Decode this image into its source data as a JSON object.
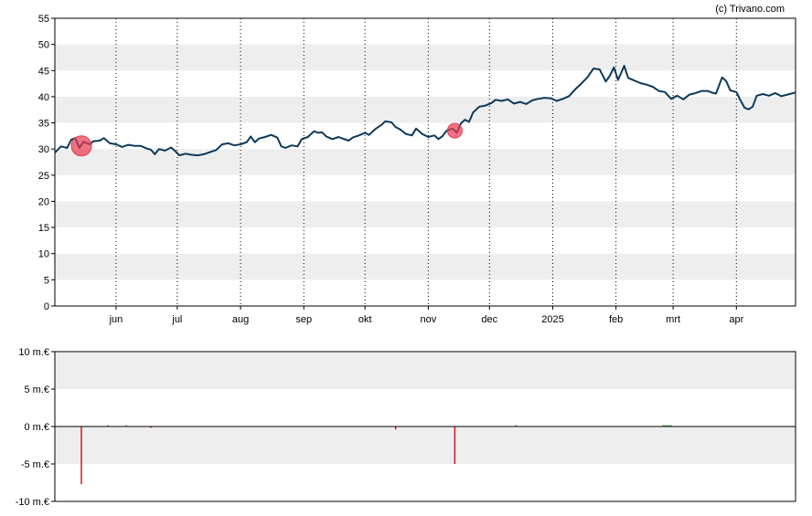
{
  "credit": "(c) Trivano.com",
  "colors": {
    "band": "#eeeeee",
    "line": "#0d3a5a",
    "marker": "#e8384f",
    "negative_bar": "#d11a1a",
    "positive_bar": "#1f9e3a",
    "axis": "#000000",
    "vgrid": "#000000"
  },
  "chart_data": [
    {
      "type": "line",
      "ylim": [
        0,
        55
      ],
      "y_ticks": [
        "0",
        "5",
        "10",
        "15",
        "20",
        "25",
        "30",
        "35",
        "40",
        "45",
        "50",
        "55"
      ],
      "x_range": [
        "2024-05-02",
        "2025-04-30"
      ],
      "month_ticks": [
        {
          "label": "jun",
          "date": "2024-06-01"
        },
        {
          "label": "jul",
          "date": "2024-07-01"
        },
        {
          "label": "aug",
          "date": "2024-08-01"
        },
        {
          "label": "sep",
          "date": "2024-09-01"
        },
        {
          "label": "okt",
          "date": "2024-10-01"
        },
        {
          "label": "nov",
          "date": "2024-11-01"
        },
        {
          "label": "dec",
          "date": "2024-12-01"
        },
        {
          "label": "2025",
          "date": "2025-01-01"
        },
        {
          "label": "feb",
          "date": "2025-02-01"
        },
        {
          "label": "mrt",
          "date": "2025-03-01"
        },
        {
          "label": "apr",
          "date": "2025-04-01"
        }
      ],
      "grid": "alternating horizontal bands, dotted monthly verticals",
      "series": [
        {
          "points": [
            [
              "2024-05-02",
              29.3
            ],
            [
              "2024-05-05",
              30.5
            ],
            [
              "2024-05-08",
              30.2
            ],
            [
              "2024-05-10",
              31.8
            ],
            [
              "2024-05-12",
              32.1
            ],
            [
              "2024-05-14",
              30.2
            ],
            [
              "2024-05-16",
              31.4
            ],
            [
              "2024-05-19",
              30.9
            ],
            [
              "2024-05-21",
              31.5
            ],
            [
              "2024-05-24",
              31.6
            ],
            [
              "2024-05-26",
              32.1
            ],
            [
              "2024-05-29",
              31.1
            ],
            [
              "2024-06-01",
              30.9
            ],
            [
              "2024-06-04",
              30.4
            ],
            [
              "2024-06-07",
              30.8
            ],
            [
              "2024-06-10",
              30.6
            ],
            [
              "2024-06-13",
              30.6
            ],
            [
              "2024-06-16",
              30.1
            ],
            [
              "2024-06-18",
              29.9
            ],
            [
              "2024-06-20",
              29.0
            ],
            [
              "2024-06-22",
              30.0
            ],
            [
              "2024-06-25",
              29.7
            ],
            [
              "2024-06-28",
              30.3
            ],
            [
              "2024-06-30",
              29.6
            ],
            [
              "2024-07-02",
              28.8
            ],
            [
              "2024-07-05",
              29.1
            ],
            [
              "2024-07-08",
              28.9
            ],
            [
              "2024-07-11",
              28.8
            ],
            [
              "2024-07-14",
              29.0
            ],
            [
              "2024-07-17",
              29.4
            ],
            [
              "2024-07-20",
              29.8
            ],
            [
              "2024-07-23",
              30.9
            ],
            [
              "2024-07-26",
              31.1
            ],
            [
              "2024-07-29",
              30.7
            ],
            [
              "2024-08-01",
              30.9
            ],
            [
              "2024-08-04",
              31.3
            ],
            [
              "2024-08-06",
              32.4
            ],
            [
              "2024-08-08",
              31.3
            ],
            [
              "2024-08-10",
              32.0
            ],
            [
              "2024-08-13",
              32.3
            ],
            [
              "2024-08-16",
              32.7
            ],
            [
              "2024-08-19",
              32.2
            ],
            [
              "2024-08-21",
              30.5
            ],
            [
              "2024-08-23",
              30.2
            ],
            [
              "2024-08-26",
              30.7
            ],
            [
              "2024-08-29",
              30.5
            ],
            [
              "2024-08-31",
              31.9
            ],
            [
              "2024-09-03",
              32.3
            ],
            [
              "2024-09-06",
              33.4
            ],
            [
              "2024-09-08",
              33.1
            ],
            [
              "2024-09-10",
              33.2
            ],
            [
              "2024-09-12",
              32.4
            ],
            [
              "2024-09-15",
              31.9
            ],
            [
              "2024-09-18",
              32.3
            ],
            [
              "2024-09-20",
              32.0
            ],
            [
              "2024-09-23",
              31.6
            ],
            [
              "2024-09-25",
              32.2
            ],
            [
              "2024-09-28",
              32.6
            ],
            [
              "2024-10-01",
              33.1
            ],
            [
              "2024-10-03",
              32.7
            ],
            [
              "2024-10-06",
              33.8
            ],
            [
              "2024-10-09",
              34.6
            ],
            [
              "2024-10-11",
              35.3
            ],
            [
              "2024-10-14",
              35.1
            ],
            [
              "2024-10-16",
              34.2
            ],
            [
              "2024-10-18",
              33.8
            ],
            [
              "2024-10-21",
              32.9
            ],
            [
              "2024-10-24",
              32.6
            ],
            [
              "2024-10-26",
              33.9
            ],
            [
              "2024-10-29",
              32.9
            ],
            [
              "2024-11-01",
              32.3
            ],
            [
              "2024-11-04",
              32.6
            ],
            [
              "2024-11-06",
              31.9
            ],
            [
              "2024-11-08",
              32.5
            ],
            [
              "2024-11-10",
              33.5
            ],
            [
              "2024-11-13",
              33.9
            ],
            [
              "2024-11-15",
              33.1
            ],
            [
              "2024-11-17",
              34.9
            ],
            [
              "2024-11-19",
              35.6
            ],
            [
              "2024-11-21",
              35.2
            ],
            [
              "2024-11-23",
              37.0
            ],
            [
              "2024-11-26",
              38.1
            ],
            [
              "2024-11-29",
              38.3
            ],
            [
              "2024-12-02",
              38.8
            ],
            [
              "2024-12-04",
              39.4
            ],
            [
              "2024-12-07",
              39.2
            ],
            [
              "2024-12-10",
              39.5
            ],
            [
              "2024-12-13",
              38.7
            ],
            [
              "2024-12-16",
              39.0
            ],
            [
              "2024-12-19",
              38.6
            ],
            [
              "2024-12-22",
              39.3
            ],
            [
              "2024-12-25",
              39.6
            ],
            [
              "2024-12-28",
              39.8
            ],
            [
              "2024-12-31",
              39.7
            ],
            [
              "2025-01-03",
              39.2
            ],
            [
              "2025-01-06",
              39.6
            ],
            [
              "2025-01-09",
              40.1
            ],
            [
              "2025-01-12",
              41.4
            ],
            [
              "2025-01-15",
              42.5
            ],
            [
              "2025-01-18",
              43.7
            ],
            [
              "2025-01-21",
              45.4
            ],
            [
              "2025-01-24",
              45.2
            ],
            [
              "2025-01-27",
              42.9
            ],
            [
              "2025-01-29",
              44.0
            ],
            [
              "2025-01-31",
              45.6
            ],
            [
              "2025-02-02",
              43.2
            ],
            [
              "2025-02-05",
              45.9
            ],
            [
              "2025-02-07",
              43.6
            ],
            [
              "2025-02-10",
              43.1
            ],
            [
              "2025-02-13",
              42.6
            ],
            [
              "2025-02-16",
              42.3
            ],
            [
              "2025-02-19",
              41.9
            ],
            [
              "2025-02-22",
              41.1
            ],
            [
              "2025-02-25",
              40.9
            ],
            [
              "2025-02-28",
              39.6
            ],
            [
              "2025-03-03",
              40.2
            ],
            [
              "2025-03-06",
              39.5
            ],
            [
              "2025-03-09",
              40.4
            ],
            [
              "2025-03-12",
              40.7
            ],
            [
              "2025-03-15",
              41.1
            ],
            [
              "2025-03-18",
              41.1
            ],
            [
              "2025-03-20",
              40.8
            ],
            [
              "2025-03-22",
              40.6
            ],
            [
              "2025-03-25",
              43.7
            ],
            [
              "2025-03-27",
              43.0
            ],
            [
              "2025-03-29",
              41.2
            ],
            [
              "2025-04-01",
              40.9
            ],
            [
              "2025-04-03",
              39.3
            ],
            [
              "2025-04-05",
              37.9
            ],
            [
              "2025-04-07",
              37.6
            ],
            [
              "2025-04-09",
              38.1
            ],
            [
              "2025-04-11",
              40.2
            ],
            [
              "2025-04-14",
              40.5
            ],
            [
              "2025-04-17",
              40.2
            ],
            [
              "2025-04-20",
              40.7
            ],
            [
              "2025-04-23",
              40.1
            ],
            [
              "2025-04-26",
              40.4
            ],
            [
              "2025-04-30",
              40.8
            ]
          ]
        }
      ],
      "markers": [
        {
          "date": "2024-05-15",
          "value": 30.6,
          "size": "large"
        },
        {
          "date": "2024-11-14",
          "value": 33.5,
          "size": "small"
        }
      ]
    },
    {
      "type": "bar",
      "ylim": [
        -10,
        10
      ],
      "y_ticks": [
        "-10 m.€",
        "-5 m.€",
        "0 m.€",
        "5 m.€",
        "10 m.€"
      ],
      "bars": [
        {
          "date": "2024-05-15",
          "value": -7.7
        },
        {
          "date": "2024-05-28",
          "value": 0.1
        },
        {
          "date": "2024-06-06",
          "value": 0.05
        },
        {
          "date": "2024-06-18",
          "value": -0.1
        },
        {
          "date": "2024-10-16",
          "value": -0.4
        },
        {
          "date": "2024-11-14",
          "value": -5.0
        },
        {
          "date": "2024-12-14",
          "value": 0.05
        },
        {
          "date": "2025-02-24",
          "value": 0.05
        },
        {
          "date": "2025-02-25",
          "value": 0.05
        },
        {
          "date": "2025-02-26",
          "value": 0.05
        },
        {
          "date": "2025-02-27",
          "value": 0.05
        },
        {
          "date": "2025-02-28",
          "value": 0.05
        }
      ]
    }
  ]
}
